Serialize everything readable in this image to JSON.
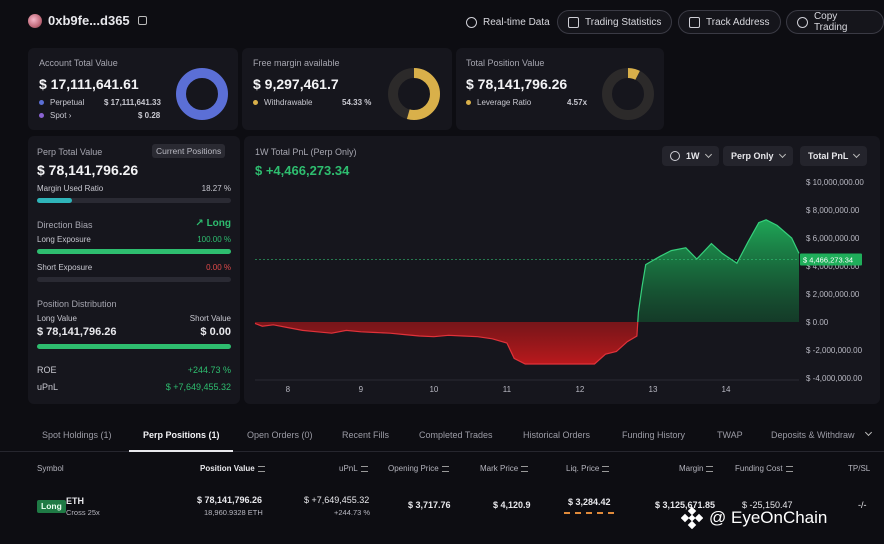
{
  "header": {
    "address": "0xb9fe...d365",
    "buttons": [
      {
        "label": "Real-time Data",
        "icon": "refresh-icon"
      },
      {
        "label": "Trading Statistics",
        "icon": "stats-icon"
      },
      {
        "label": "Track Address",
        "icon": "track-icon"
      },
      {
        "label": "Copy Trading",
        "icon": "copy-trading-icon"
      }
    ]
  },
  "summary": {
    "account": {
      "title": "Account Total Value",
      "value": "$ 17,111,641.61",
      "perp_label": "Perpetual",
      "perp_value": "$ 17,111,641.33",
      "spot_label": "Spot",
      "spot_value": "$ 0.28",
      "perp_color": "#5b6fd6",
      "spot_color": "#8a63d2"
    },
    "margin": {
      "title": "Free margin available",
      "value": "$ 9,297,461.7",
      "withdrawable_label": "Withdrawable",
      "withdrawable_value": "54.33 %",
      "withdrawable_fraction": 0.5433,
      "color": "#d9b04a"
    },
    "position": {
      "title": "Total Position Value",
      "value": "$ 78,141,796.26",
      "leverage_label": "Leverage Ratio",
      "leverage_value": "4.57x",
      "color": "#d9b04a"
    }
  },
  "perp": {
    "title": "Perp Total Value",
    "current_positions": "Current Positions",
    "value": "$ 78,141,796.26",
    "margin_used_label": "Margin Used Ratio",
    "margin_used_value": "18.27 %",
    "margin_used_fraction": 0.1827,
    "direction_title": "Direction Bias",
    "direction_value": "Long",
    "long_exposure_label": "Long Exposure",
    "long_exposure_value": "100.00 %",
    "long_exposure_fraction": 1.0,
    "short_exposure_label": "Short Exposure",
    "short_exposure_value": "0.00 %",
    "short_exposure_fraction": 0.0,
    "distribution_title": "Position Distribution",
    "long_value_label": "Long Value",
    "short_value_label": "Short Value",
    "long_value": "$ 78,141,796.26",
    "short_value": "$ 0.00",
    "roe_label": "ROE",
    "roe_value": "+244.73 %",
    "upnl_label": "uPnL",
    "upnl_value": "$ +7,649,455.32"
  },
  "pnl": {
    "title": "1W Total PnL (Perp Only)",
    "value": "$ +4,466,273.34",
    "controls": {
      "period": "1W",
      "scope": "Perp Only",
      "metric": "Total PnL"
    },
    "current_label": "$ 4,466,273.34"
  },
  "chart_data": {
    "type": "area",
    "title": "1W Total PnL (Perp Only)",
    "x_ticks": [
      "8",
      "9",
      "10",
      "11",
      "12",
      "13",
      "14"
    ],
    "y_ticks": [
      "$ 10,000,000.00",
      "$ 8,000,000.00",
      "$ 6,000,000.00",
      "$ 4,000,000.00",
      "$ 2,000,000.00",
      "$ 0.00",
      "$ -2,000,000.00",
      "$ -4,000,000.00"
    ],
    "ylim": [
      -4000000,
      10000000
    ],
    "x": [
      7.55,
      7.65,
      7.8,
      8.0,
      8.2,
      8.4,
      8.6,
      8.8,
      9.0,
      9.2,
      9.4,
      9.6,
      9.8,
      10.0,
      10.2,
      10.4,
      10.6,
      10.8,
      11.0,
      11.1,
      11.25,
      11.5,
      11.75,
      12.0,
      12.2,
      12.35,
      12.5,
      12.65,
      12.78,
      12.8,
      12.85,
      12.9,
      13.0,
      13.1,
      13.25,
      13.45,
      13.6,
      13.8,
      13.95,
      14.15,
      14.3,
      14.45,
      14.55,
      14.7,
      14.9,
      15.0
    ],
    "y": [
      -100000,
      -300000,
      -200000,
      -400000,
      -600000,
      -700000,
      -800000,
      -600000,
      -700000,
      -750000,
      -800000,
      -900000,
      -1000000,
      -1050000,
      -950000,
      -1000000,
      -1050000,
      -1200000,
      -1500000,
      -2600000,
      -3000000,
      -3000000,
      -3000000,
      -3000000,
      -3000000,
      -2300000,
      -2100000,
      -1400000,
      -1000000,
      700000,
      2500000,
      4100000,
      4400000,
      4700000,
      5100000,
      5300000,
      4500000,
      5600000,
      4900000,
      4200000,
      5700000,
      7100000,
      7300000,
      6900000,
      6000000,
      4900000
    ]
  },
  "tabs": [
    "Spot Holdings (1)",
    "Perp Positions (1)",
    "Open Orders (0)",
    "Recent Fills",
    "Completed Trades",
    "Historical Orders",
    "Funding History",
    "TWAP",
    "Deposits & Withdraw"
  ],
  "table": {
    "headers": [
      "Symbol",
      "Position Value",
      "uPnL",
      "Opening Price",
      "Mark Price",
      "Liq. Price",
      "Margin",
      "Funding Cost",
      "TP/SL"
    ],
    "row": {
      "side": "Long",
      "symbol": "ETH",
      "mode": "Cross 25x",
      "position_value": "$ 78,141,796.26",
      "position_size": "18,960.9328 ETH",
      "upnl": "$ +7,649,455.32",
      "upnl_pct": "+244.73 %",
      "opening_price": "$ 3,717.76",
      "mark_price": "$ 4,120.9",
      "liq_price": "$ 3,284.42",
      "margin": "$ 3,125,671.85",
      "funding_cost": "$ -25,150.47",
      "tpsl": "-/-"
    }
  },
  "watermark": "@ EyeOnChain"
}
